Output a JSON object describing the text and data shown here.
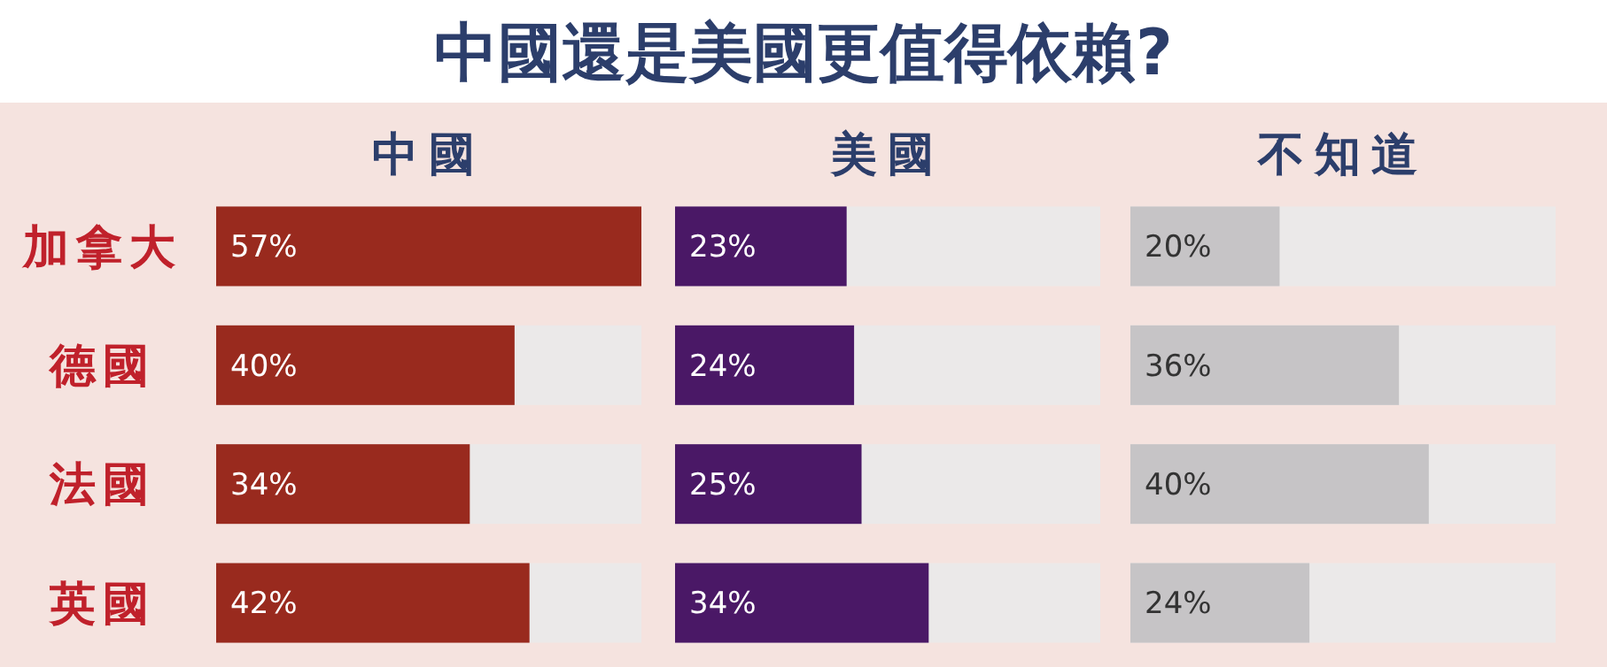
{
  "chart_data": [
    {
      "type": "bar",
      "orientation": "horizontal",
      "title": "中國",
      "annotations": [
        "中國還是美國更值得依賴?"
      ],
      "categories": [
        "加拿大",
        "德國",
        "法國",
        "英國"
      ],
      "values": [
        57,
        40,
        34,
        42
      ],
      "value_labels": [
        "57%",
        "40%",
        "34%",
        "42%"
      ],
      "color": "#992a1e",
      "xlim": [
        0,
        57
      ],
      "tick_labels": "y"
    },
    {
      "type": "bar",
      "orientation": "horizontal",
      "title": "美國",
      "categories": [
        null,
        null,
        null,
        null
      ],
      "values": [
        23,
        24,
        25,
        34
      ],
      "value_labels": [
        "23%",
        "24%",
        "25%",
        "34%"
      ],
      "color": "#4a1866",
      "xlim": [
        0,
        57
      ],
      "tick_labels": false
    },
    {
      "type": "bar",
      "orientation": "horizontal",
      "title": "不知道",
      "categories": [
        null,
        null,
        null,
        null
      ],
      "values": [
        20,
        36,
        40,
        24
      ],
      "value_labels": [
        "20%",
        "36%",
        "40%",
        "24%"
      ],
      "color": "#c6c4c6",
      "xlim": [
        0,
        57
      ],
      "tick_labels": false
    }
  ]
}
